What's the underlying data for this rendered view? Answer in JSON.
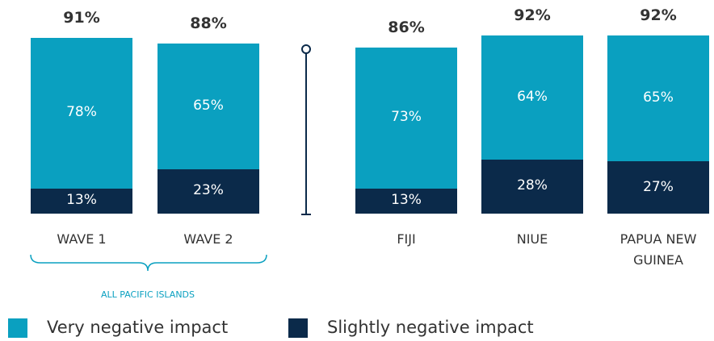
{
  "chart_data": {
    "type": "stacked_bar",
    "categories": [
      "WAVE 1",
      "WAVE 2",
      "FIJI",
      "NIUE",
      "PAPUA NEW GUINEA"
    ],
    "series": [
      {
        "name": "Very negative impact",
        "color": "#0aa0c0",
        "values": [
          78,
          65,
          73,
          64,
          65
        ],
        "value_labels": [
          "78%",
          "65%",
          "73%",
          "64%",
          "65%"
        ]
      },
      {
        "name": "Slightly negative impact",
        "color": "#0b2a4a",
        "values": [
          13,
          23,
          13,
          28,
          27
        ],
        "value_labels": [
          "13%",
          "23%",
          "13%",
          "28%",
          "27%"
        ]
      }
    ],
    "totals": [
      91,
      88,
      86,
      92,
      92
    ],
    "total_labels": [
      "91%",
      "88%",
      "86%",
      "92%",
      "92%"
    ],
    "annotation": "ALL PACIFIC ISLANDS"
  }
}
